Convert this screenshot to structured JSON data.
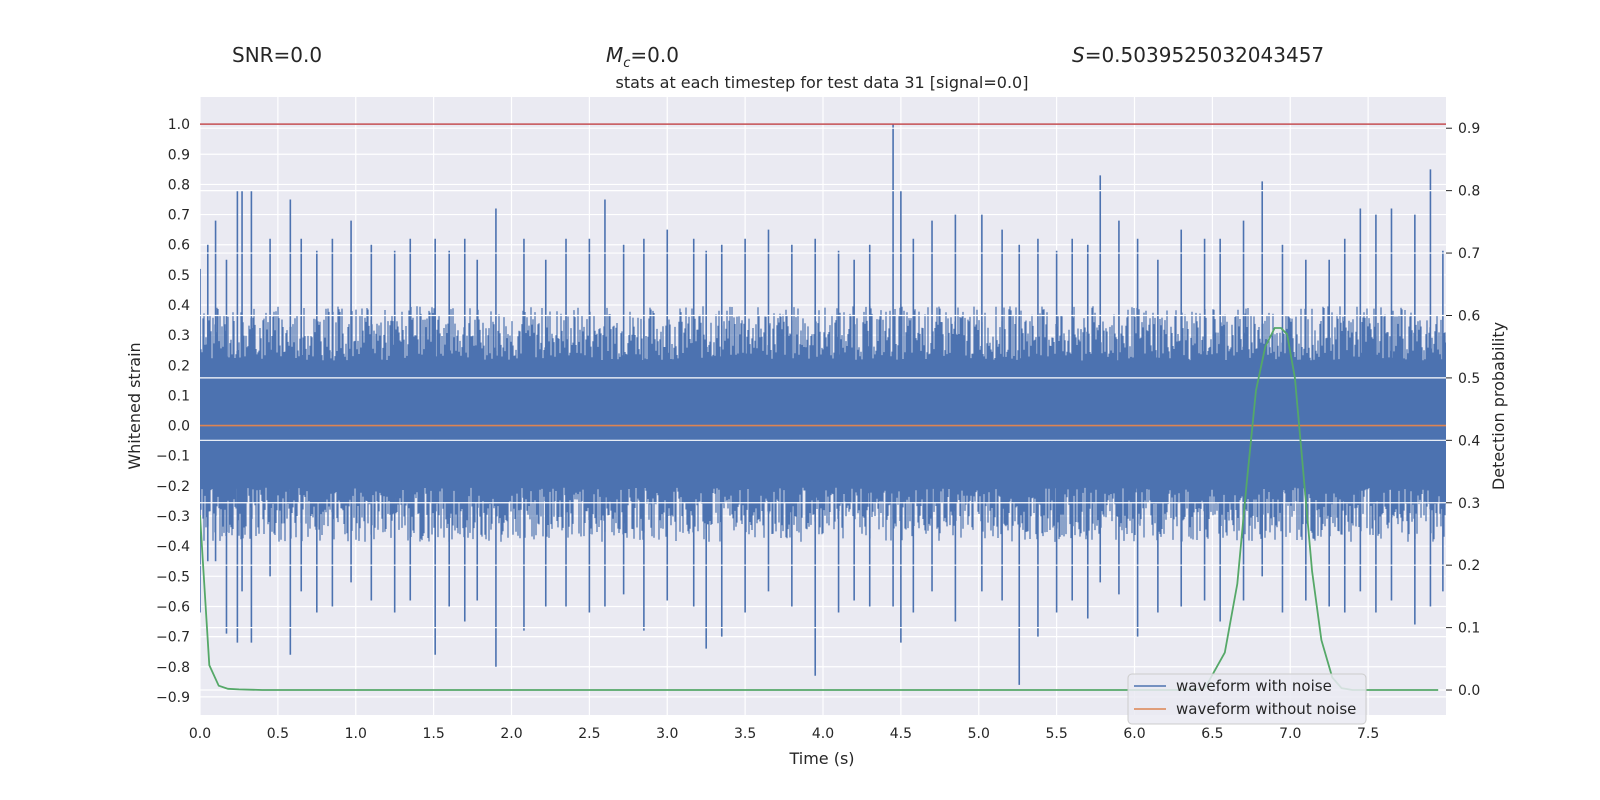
{
  "colors": {
    "background": "#eaeaf2",
    "grid": "#ffffff",
    "noisy": "#4c72b0",
    "clean": "#dd8452",
    "probability": "#55a868",
    "threshold": "#c44e52"
  },
  "header": {
    "snr": "SNR=0.0",
    "mc_symbol": "M",
    "mc_sub": "c",
    "mc_value": "=0.0",
    "s_symbol": "S",
    "s_value": "=0.5039525032043457"
  },
  "chart_data": {
    "type": "line",
    "title": "stats at each timestep for test data 31 [signal=0.0]",
    "xlabel": "Time (s)",
    "ylabel_left": "Whitened strain",
    "ylabel_right": "Detection probability",
    "xlim": [
      0.0,
      8.0
    ],
    "ylim_left": [
      -0.96,
      1.09
    ],
    "ylim_right": [
      -0.04,
      0.95
    ],
    "x_ticks": [
      "0.0",
      "0.5",
      "1.0",
      "1.5",
      "2.0",
      "2.5",
      "3.0",
      "3.5",
      "4.0",
      "4.5",
      "5.0",
      "5.5",
      "6.0",
      "6.5",
      "7.0",
      "7.5"
    ],
    "y_ticks_left": [
      "1.0",
      "0.9",
      "0.8",
      "0.7",
      "0.6",
      "0.5",
      "0.4",
      "0.3",
      "0.2",
      "0.1",
      "0.0",
      "−0.1",
      "−0.2",
      "−0.3",
      "−0.4",
      "−0.5",
      "−0.6",
      "−0.7",
      "−0.8",
      "−0.9"
    ],
    "y_ticks_right": [
      "0.9",
      "0.8",
      "0.7",
      "0.6",
      "0.5",
      "0.4",
      "0.3",
      "0.2",
      "0.1",
      "0.0"
    ],
    "threshold_line": {
      "axis": "left",
      "value": 1.0
    },
    "waveform_with_noise": {
      "name": "waveform with noise",
      "envelope_upper": 0.27,
      "envelope_lower": -0.26,
      "spikes": [
        [
          0.0,
          0.52,
          -0.62
        ],
        [
          0.05,
          0.6,
          -0.45
        ],
        [
          0.1,
          0.68,
          -0.45
        ],
        [
          0.17,
          0.55,
          -0.69
        ],
        [
          0.24,
          0.78,
          -0.72
        ],
        [
          0.27,
          0.78,
          -0.55
        ],
        [
          0.33,
          0.78,
          -0.72
        ],
        [
          0.45,
          0.62,
          -0.5
        ],
        [
          0.58,
          0.75,
          -0.76
        ],
        [
          0.65,
          0.62,
          -0.55
        ],
        [
          0.75,
          0.58,
          -0.62
        ],
        [
          0.85,
          0.62,
          -0.6
        ],
        [
          0.97,
          0.68,
          -0.52
        ],
        [
          1.1,
          0.6,
          -0.58
        ],
        [
          1.25,
          0.58,
          -0.62
        ],
        [
          1.35,
          0.62,
          -0.58
        ],
        [
          1.51,
          0.62,
          -0.76
        ],
        [
          1.6,
          0.58,
          -0.6
        ],
        [
          1.7,
          0.62,
          -0.65
        ],
        [
          1.78,
          0.55,
          -0.58
        ],
        [
          1.9,
          0.72,
          -0.8
        ],
        [
          2.08,
          0.62,
          -0.68
        ],
        [
          2.22,
          0.55,
          -0.6
        ],
        [
          2.35,
          0.62,
          -0.6
        ],
        [
          2.5,
          0.62,
          -0.62
        ],
        [
          2.6,
          0.75,
          -0.6
        ],
        [
          2.72,
          0.6,
          -0.56
        ],
        [
          2.85,
          0.62,
          -0.68
        ],
        [
          3.0,
          0.65,
          -0.58
        ],
        [
          3.17,
          0.62,
          -0.6
        ],
        [
          3.25,
          0.58,
          -0.74
        ],
        [
          3.35,
          0.6,
          -0.7
        ],
        [
          3.5,
          0.62,
          -0.62
        ],
        [
          3.65,
          0.65,
          -0.55
        ],
        [
          3.8,
          0.6,
          -0.6
        ],
        [
          3.95,
          0.62,
          -0.83
        ],
        [
          4.1,
          0.58,
          -0.62
        ],
        [
          4.2,
          0.55,
          -0.58
        ],
        [
          4.3,
          0.6,
          -0.6
        ],
        [
          4.45,
          1.0,
          -0.6
        ],
        [
          4.5,
          0.78,
          -0.72
        ],
        [
          4.58,
          0.62,
          -0.62
        ],
        [
          4.7,
          0.68,
          -0.55
        ],
        [
          4.85,
          0.7,
          -0.65
        ],
        [
          5.02,
          0.7,
          -0.55
        ],
        [
          5.15,
          0.65,
          -0.58
        ],
        [
          5.26,
          0.6,
          -0.86
        ],
        [
          5.38,
          0.62,
          -0.7
        ],
        [
          5.5,
          0.58,
          -0.62
        ],
        [
          5.6,
          0.62,
          -0.58
        ],
        [
          5.7,
          0.6,
          -0.64
        ],
        [
          5.78,
          0.83,
          -0.52
        ],
        [
          5.9,
          0.68,
          -0.56
        ],
        [
          6.02,
          0.62,
          -0.7
        ],
        [
          6.15,
          0.55,
          -0.62
        ],
        [
          6.3,
          0.65,
          -0.6
        ],
        [
          6.45,
          0.62,
          -0.58
        ],
        [
          6.55,
          0.62,
          -0.65
        ],
        [
          6.7,
          0.68,
          -0.58
        ],
        [
          6.82,
          0.81,
          -0.5
        ],
        [
          6.95,
          0.6,
          -0.62
        ],
        [
          7.1,
          0.55,
          -0.58
        ],
        [
          7.25,
          0.55,
          -0.6
        ],
        [
          7.35,
          0.62,
          -0.62
        ],
        [
          7.45,
          0.72,
          -0.55
        ],
        [
          7.55,
          0.7,
          -0.62
        ],
        [
          7.65,
          0.72,
          -0.58
        ],
        [
          7.8,
          0.7,
          -0.66
        ],
        [
          7.9,
          0.85,
          -0.6
        ],
        [
          7.98,
          0.58,
          -0.55
        ]
      ]
    },
    "waveform_without_noise": {
      "name": "waveform without noise",
      "x": [
        0.0,
        8.0
      ],
      "y": [
        0.0,
        0.0
      ]
    },
    "detection_probability": {
      "name": "detection probability",
      "x": [
        0.0,
        0.06,
        0.12,
        0.18,
        0.25,
        0.4,
        6.3,
        6.45,
        6.58,
        6.66,
        6.72,
        6.78,
        6.84,
        6.9,
        6.94,
        6.98,
        7.03,
        7.08,
        7.14,
        7.2,
        7.27,
        7.33,
        7.4,
        7.95
      ],
      "y": [
        0.28,
        0.04,
        0.007,
        0.002,
        0.001,
        0.0,
        0.0,
        0.002,
        0.06,
        0.17,
        0.33,
        0.48,
        0.55,
        0.58,
        0.58,
        0.57,
        0.5,
        0.36,
        0.19,
        0.08,
        0.02,
        0.003,
        0.0,
        0.0
      ]
    },
    "legend": {
      "position": "lower-right",
      "entries": [
        "waveform with noise",
        "waveform without noise"
      ]
    }
  }
}
